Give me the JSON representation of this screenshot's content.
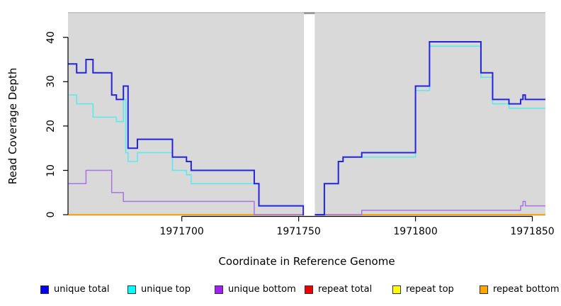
{
  "axes": {
    "xlabel": "Coordinate in Reference Genome",
    "ylabel": "Read Coverage Depth"
  },
  "legend": {
    "items": [
      {
        "label": "unique total",
        "color": "#0000ee"
      },
      {
        "label": "unique top",
        "color": "#00ffff"
      },
      {
        "label": "unique bottom",
        "color": "#a020f0"
      },
      {
        "label": "repeat total",
        "color": "#ee0000"
      },
      {
        "label": "repeat top",
        "color": "#ffff00"
      },
      {
        "label": "repeat bottom",
        "color": "#ffa500"
      }
    ]
  },
  "chart_data": {
    "type": "line",
    "step": true,
    "title": "",
    "xlabel": "Coordinate in Reference Genome",
    "ylabel": "Read Coverage Depth",
    "xlim": [
      1971651.3,
      1971855.6
    ],
    "ylim_draw": [
      -0.3,
      45.7
    ],
    "xticks": [
      1971700,
      1971750,
      1971800,
      1971850
    ],
    "yticks": [
      0,
      10,
      20,
      30,
      40
    ],
    "panel_background": "#d9d9d9",
    "panel_top_border_color": "#c6c6c6",
    "grid": false,
    "legend_position": "bottom",
    "gap_region": {
      "x_start": 1971752.3,
      "x_end": 1971756.9,
      "color": "#ffffff",
      "cap_color": "#9c9c9c"
    },
    "series": [
      {
        "name": "repeat total",
        "color": "#e00000",
        "width": 1.5,
        "segments": [
          {
            "steps": [
              [
                1971651.3,
                0
              ]
            ],
            "end": 1971752.3
          },
          {
            "steps": [
              [
                1971756.9,
                0
              ]
            ],
            "end": 1971855.6
          }
        ]
      },
      {
        "name": "repeat top",
        "color": "#ffff00",
        "width": 1.5,
        "segments": [
          {
            "steps": [
              [
                1971651.3,
                0
              ]
            ],
            "end": 1971752.3
          },
          {
            "steps": [
              [
                1971756.9,
                0
              ]
            ],
            "end": 1971855.6
          }
        ]
      },
      {
        "name": "repeat bottom",
        "color": "#ffa500",
        "width": 1.8,
        "segments": [
          {
            "steps": [
              [
                1971651.3,
                0
              ]
            ],
            "end": 1971752.3
          },
          {
            "steps": [
              [
                1971756.9,
                0
              ]
            ],
            "end": 1971855.6
          }
        ]
      },
      {
        "name": "unique bottom",
        "color": "#a873e3",
        "width": 1.5,
        "segments": [
          {
            "steps": [
              [
                1971651.3,
                7
              ],
              [
                1971659,
                10
              ],
              [
                1971670,
                5
              ],
              [
                1971675,
                3
              ],
              [
                1971731,
                0
              ]
            ],
            "end": 1971752.3
          },
          {
            "steps": [
              [
                1971756.9,
                0
              ],
              [
                1971777,
                1
              ],
              [
                1971845,
                2
              ],
              [
                1971846,
                3
              ],
              [
                1971847,
                2
              ]
            ],
            "end": 1971855.6
          }
        ]
      },
      {
        "name": "unique top",
        "color": "#60e9ec",
        "width": 1.6,
        "segments": [
          {
            "steps": [
              [
                1971651.3,
                27
              ],
              [
                1971655,
                25
              ],
              [
                1971662,
                22
              ],
              [
                1971672,
                21
              ],
              [
                1971675,
                26
              ],
              [
                1971676,
                14
              ],
              [
                1971677,
                12
              ],
              [
                1971681,
                14
              ],
              [
                1971696,
                10
              ],
              [
                1971702,
                9
              ],
              [
                1971704,
                7
              ],
              [
                1971733,
                2
              ],
              [
                1971752,
                0
              ]
            ],
            "end": 1971752.3
          },
          {
            "steps": [
              [
                1971756.9,
                0
              ],
              [
                1971761,
                7
              ],
              [
                1971767,
                12
              ],
              [
                1971769,
                13
              ],
              [
                1971800,
                28
              ],
              [
                1971806,
                38
              ],
              [
                1971828,
                31
              ],
              [
                1971833,
                25
              ],
              [
                1971840,
                24
              ]
            ],
            "end": 1971855.6
          }
        ]
      },
      {
        "name": "unique total",
        "color": "#2424dd",
        "width": 2,
        "segments": [
          {
            "steps": [
              [
                1971651.3,
                34
              ],
              [
                1971655,
                32
              ],
              [
                1971659,
                35
              ],
              [
                1971662,
                32
              ],
              [
                1971670,
                27
              ],
              [
                1971672,
                26
              ],
              [
                1971675,
                29
              ],
              [
                1971677,
                15
              ],
              [
                1971681,
                17
              ],
              [
                1971696,
                13
              ],
              [
                1971702,
                12
              ],
              [
                1971704,
                10
              ],
              [
                1971731,
                7
              ],
              [
                1971733,
                2
              ],
              [
                1971752,
                0
              ]
            ],
            "end": 1971752.3
          },
          {
            "steps": [
              [
                1971756.9,
                0
              ],
              [
                1971761,
                7
              ],
              [
                1971767,
                12
              ],
              [
                1971769,
                13
              ],
              [
                1971777,
                14
              ],
              [
                1971800,
                29
              ],
              [
                1971806,
                39
              ],
              [
                1971828,
                32
              ],
              [
                1971833,
                26
              ],
              [
                1971840,
                25
              ],
              [
                1971845,
                26
              ],
              [
                1971846,
                27
              ],
              [
                1971847,
                26
              ]
            ],
            "end": 1971855.6
          }
        ]
      }
    ]
  }
}
